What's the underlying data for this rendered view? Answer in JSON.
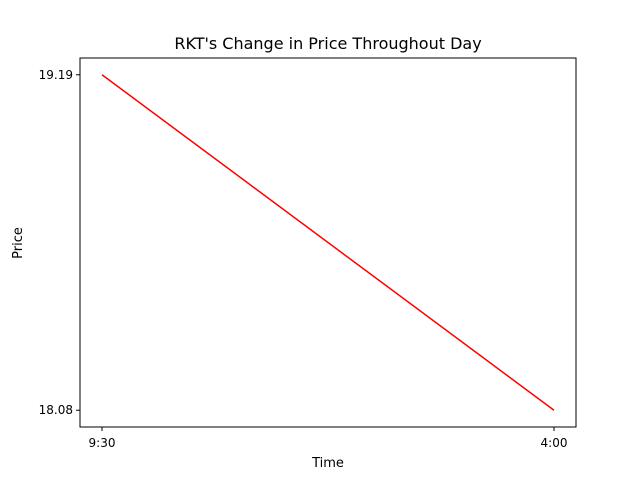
{
  "chart_data": {
    "type": "line",
    "title": "RKT's Change in Price Throughout Day",
    "xlabel": "Time",
    "ylabel": "Price",
    "x": [
      "9:30",
      "4:00"
    ],
    "series": [
      {
        "values": [
          19.19,
          18.08
        ],
        "color": "#ff0000"
      }
    ],
    "x_tick_labels": [
      "9:30",
      "4:00"
    ],
    "y_tick_values": [
      19.19,
      18.08
    ],
    "y_tick_labels": [
      "19.19",
      "18.08"
    ],
    "ylim": [
      18.0245,
      19.2455
    ],
    "grid": false,
    "legend": "none"
  }
}
